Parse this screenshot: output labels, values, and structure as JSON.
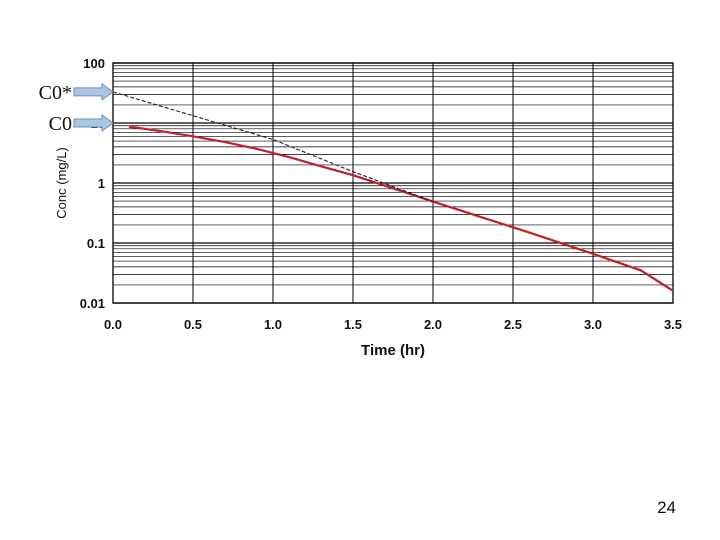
{
  "chart_data": {
    "type": "line",
    "xlabel": "Time (hr)",
    "ylabel": "Conc (mg/L)",
    "xlim": [
      0,
      3.5
    ],
    "ylim": [
      0.01,
      100
    ],
    "yscale": "log",
    "grid": true,
    "x_ticks": [
      "0.0",
      "0.5",
      "1.0",
      "1.5",
      "2.0",
      "2.5",
      "3.0",
      "3.5"
    ],
    "y_ticks": [
      "100",
      "10",
      "1",
      "0.1",
      "0.01"
    ],
    "series": [
      {
        "style": "solid",
        "color": "#c0202a",
        "x": [
          0.1,
          0.3,
          0.5,
          0.7,
          0.9,
          1.1,
          1.3,
          1.5,
          1.7,
          2.0,
          2.3,
          2.6,
          3.0,
          3.3,
          3.5
        ],
        "y": [
          8.7,
          7.3,
          6.0,
          4.8,
          3.7,
          2.7,
          1.9,
          1.35,
          0.9,
          0.49,
          0.27,
          0.15,
          0.066,
          0.035,
          0.016
        ]
      },
      {
        "style": "dashed",
        "color": "#222222",
        "x": [
          0.0,
          1.0,
          1.5,
          2.0
        ],
        "y": [
          33,
          5.3,
          1.55,
          0.49
        ]
      }
    ],
    "annotations": [
      {
        "label": "C0*",
        "y": 33
      },
      {
        "label": "C0",
        "y": 10
      }
    ]
  },
  "page_number": "24",
  "colors": {
    "arrow_fill": "#a9c7e3",
    "arrow_stroke": "#6f8fb0"
  }
}
